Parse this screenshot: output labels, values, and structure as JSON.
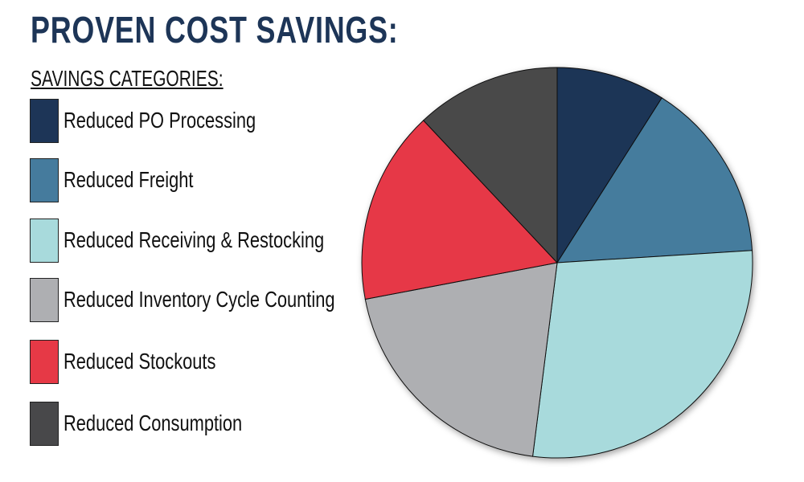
{
  "chart_data": {
    "type": "pie",
    "title": "PROVEN COST SAVINGS:",
    "legend_title": "SAVINGS CATEGORIES:",
    "legend_placement": "left",
    "categories": [
      "Reduced PO Processing",
      "Reduced Freight",
      "Reduced Receiving & Restocking",
      "Reduced Inventory Cycle Counting",
      "Reduced Stockouts",
      "Reduced Consumption"
    ],
    "values": [
      9,
      15,
      28,
      20,
      16,
      12
    ],
    "colors": [
      "#1d3557",
      "#457b9d",
      "#a8dadc",
      "#aeafb2",
      "#e63946",
      "#48484a"
    ]
  }
}
